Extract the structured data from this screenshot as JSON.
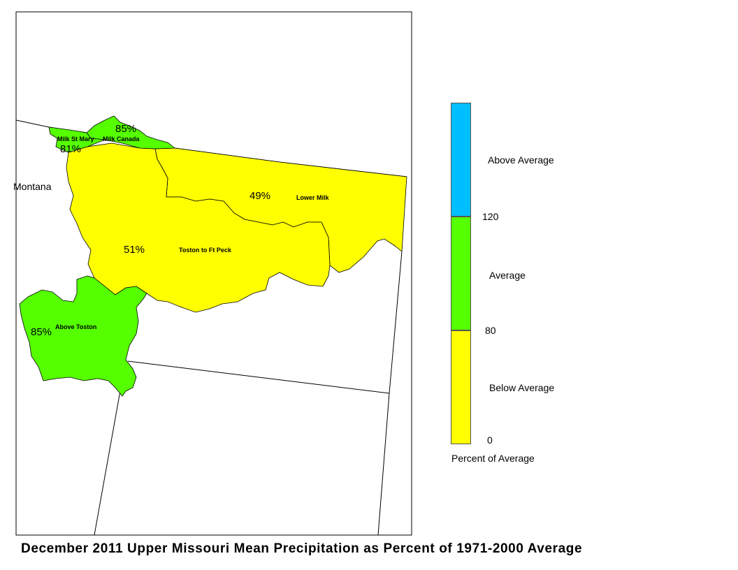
{
  "title": "December 2011 Upper Missouri Mean Precipitation as Percent of 1971-2000 Average",
  "state_label": "Montana",
  "basins": [
    {
      "name": "Milk St Mary",
      "percent": "81%",
      "category": "Average"
    },
    {
      "name": "Milk Canada",
      "percent": "85%",
      "category": "Average"
    },
    {
      "name": "Lower Milk",
      "percent": "49%",
      "category": "Below Average"
    },
    {
      "name": "Toston to Ft Peck",
      "percent": "51%",
      "category": "Below Average"
    },
    {
      "name": "Above Toston",
      "percent": "85%",
      "category": "Average"
    }
  ],
  "legend": {
    "classes": [
      {
        "label": "Above Average",
        "color": "#00bfff"
      },
      {
        "label": "Average",
        "color": "#55ff00"
      },
      {
        "label": "Below Average",
        "color": "#ffff00"
      }
    ],
    "breaks": [
      "120",
      "80",
      "0"
    ],
    "caption": "Percent of Average"
  }
}
